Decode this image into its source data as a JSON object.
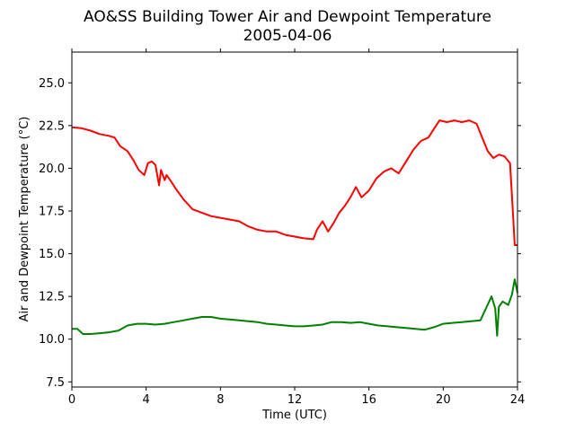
{
  "chart_data": {
    "type": "line",
    "title": "AO&SS Building Tower Air and Dewpoint Temperature",
    "subtitle": "2005-04-06",
    "xlabel": "Time (UTC)",
    "ylabel": "Air and Dewpoint Temperature (°C)",
    "xlim": [
      0,
      24
    ],
    "ylim": [
      7.2,
      26.8
    ],
    "xticks": [
      0,
      4,
      8,
      12,
      16,
      20,
      24
    ],
    "yticks": [
      7.5,
      10.0,
      12.5,
      15.0,
      17.5,
      20.0,
      22.5,
      25.0
    ],
    "grid": false,
    "series": [
      {
        "color": "#ff0000",
        "x": [
          0,
          0.5,
          1,
          1.5,
          2,
          2.3,
          2.6,
          3,
          3.3,
          3.6,
          3.9,
          4.1,
          4.3,
          4.5,
          4.7,
          4.8,
          5.0,
          5.1,
          5.3,
          5.6,
          6,
          6.5,
          7,
          7.5,
          8,
          8.5,
          9,
          9.5,
          10,
          10.5,
          11,
          11.5,
          12,
          12.5,
          13,
          13.2,
          13.5,
          13.8,
          14.1,
          14.4,
          14.7,
          15.0,
          15.3,
          15.6,
          16,
          16.4,
          16.8,
          17.2,
          17.6,
          18,
          18.4,
          18.8,
          19.2,
          19.5,
          19.8,
          20.2,
          20.6,
          21,
          21.4,
          21.8,
          22.1,
          22.4,
          22.7,
          23.0,
          23.3,
          23.6,
          23.75,
          23.85,
          24
        ],
        "values": [
          22.4,
          22.35,
          22.2,
          22.0,
          21.9,
          21.8,
          21.3,
          21.0,
          20.5,
          19.9,
          19.6,
          20.3,
          20.4,
          20.2,
          19.0,
          19.9,
          19.3,
          19.6,
          19.3,
          18.8,
          18.2,
          17.6,
          17.4,
          17.2,
          17.1,
          17.0,
          16.9,
          16.6,
          16.4,
          16.3,
          16.3,
          16.1,
          16.0,
          15.9,
          15.85,
          16.4,
          16.9,
          16.3,
          16.8,
          17.4,
          17.8,
          18.3,
          18.9,
          18.3,
          18.7,
          19.4,
          19.8,
          20.0,
          19.7,
          20.4,
          21.1,
          21.6,
          21.8,
          22.3,
          22.8,
          22.7,
          22.8,
          22.7,
          22.8,
          22.6,
          21.8,
          21.0,
          20.6,
          20.8,
          20.7,
          20.3,
          17.5,
          15.5,
          15.5
        ]
      },
      {
        "color": "#008000",
        "x": [
          0,
          0.3,
          0.6,
          1,
          1.5,
          2,
          2.5,
          3,
          3.5,
          4,
          4.5,
          5,
          5.5,
          6,
          6.5,
          7,
          7.5,
          8,
          8.5,
          9,
          9.5,
          10,
          10.5,
          11,
          11.5,
          12,
          12.5,
          13,
          13.5,
          14,
          14.5,
          15,
          15.5,
          16,
          16.5,
          17,
          17.5,
          18,
          18.5,
          19,
          19.5,
          20,
          20.5,
          21,
          21.5,
          22,
          22.3,
          22.6,
          22.8,
          22.9,
          23.0,
          23.2,
          23.5,
          23.7,
          23.85,
          24
        ],
        "values": [
          10.6,
          10.6,
          10.3,
          10.3,
          10.35,
          10.4,
          10.5,
          10.8,
          10.9,
          10.9,
          10.85,
          10.9,
          11.0,
          11.1,
          11.2,
          11.3,
          11.3,
          11.2,
          11.15,
          11.1,
          11.05,
          11.0,
          10.9,
          10.85,
          10.8,
          10.75,
          10.75,
          10.8,
          10.85,
          11.0,
          11.0,
          10.95,
          11.0,
          10.9,
          10.8,
          10.75,
          10.7,
          10.65,
          10.6,
          10.55,
          10.7,
          10.9,
          10.95,
          11.0,
          11.05,
          11.1,
          11.8,
          12.5,
          11.8,
          10.2,
          11.9,
          12.2,
          12.0,
          12.6,
          13.5,
          12.7
        ]
      }
    ]
  }
}
